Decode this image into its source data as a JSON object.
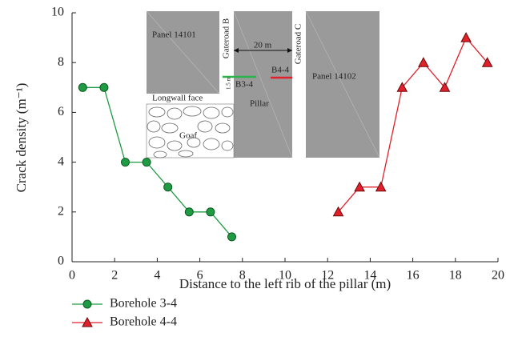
{
  "chart_data": {
    "type": "line",
    "x_label": "Distance to the left rib of the pillar (m)",
    "y_label": "Crack density (m⁻¹)",
    "xlim": [
      0,
      20
    ],
    "xticks": [
      0,
      2,
      4,
      6,
      8,
      10,
      12,
      14,
      16,
      18,
      20
    ],
    "ylim": [
      0,
      10
    ],
    "yticks": [
      0,
      2,
      4,
      6,
      8,
      10
    ],
    "series": [
      {
        "name": "Borehole 3-4",
        "color": "#1f9c43",
        "marker": "circle",
        "x": [
          0.5,
          1.5,
          2.5,
          3.5,
          4.5,
          5.5,
          6.5,
          7.5
        ],
        "values": [
          7,
          7,
          4,
          4,
          3,
          2,
          2,
          1
        ]
      },
      {
        "name": "Borehole 4-4",
        "color": "#e0202a",
        "marker": "triangle",
        "x": [
          12.5,
          13.5,
          14.5,
          15.5,
          16.5,
          17.5,
          18.5,
          19.5
        ],
        "values": [
          2,
          3,
          3,
          7,
          8,
          7,
          9,
          8
        ]
      }
    ],
    "annotations": [
      "Panel 14101",
      "Gateroad B",
      "20 m",
      "Gateroad C",
      "B4-4",
      "B3-4",
      "1.5 m",
      "Longwall face",
      "Pillar",
      "Panel 14102",
      "Goaf"
    ]
  }
}
